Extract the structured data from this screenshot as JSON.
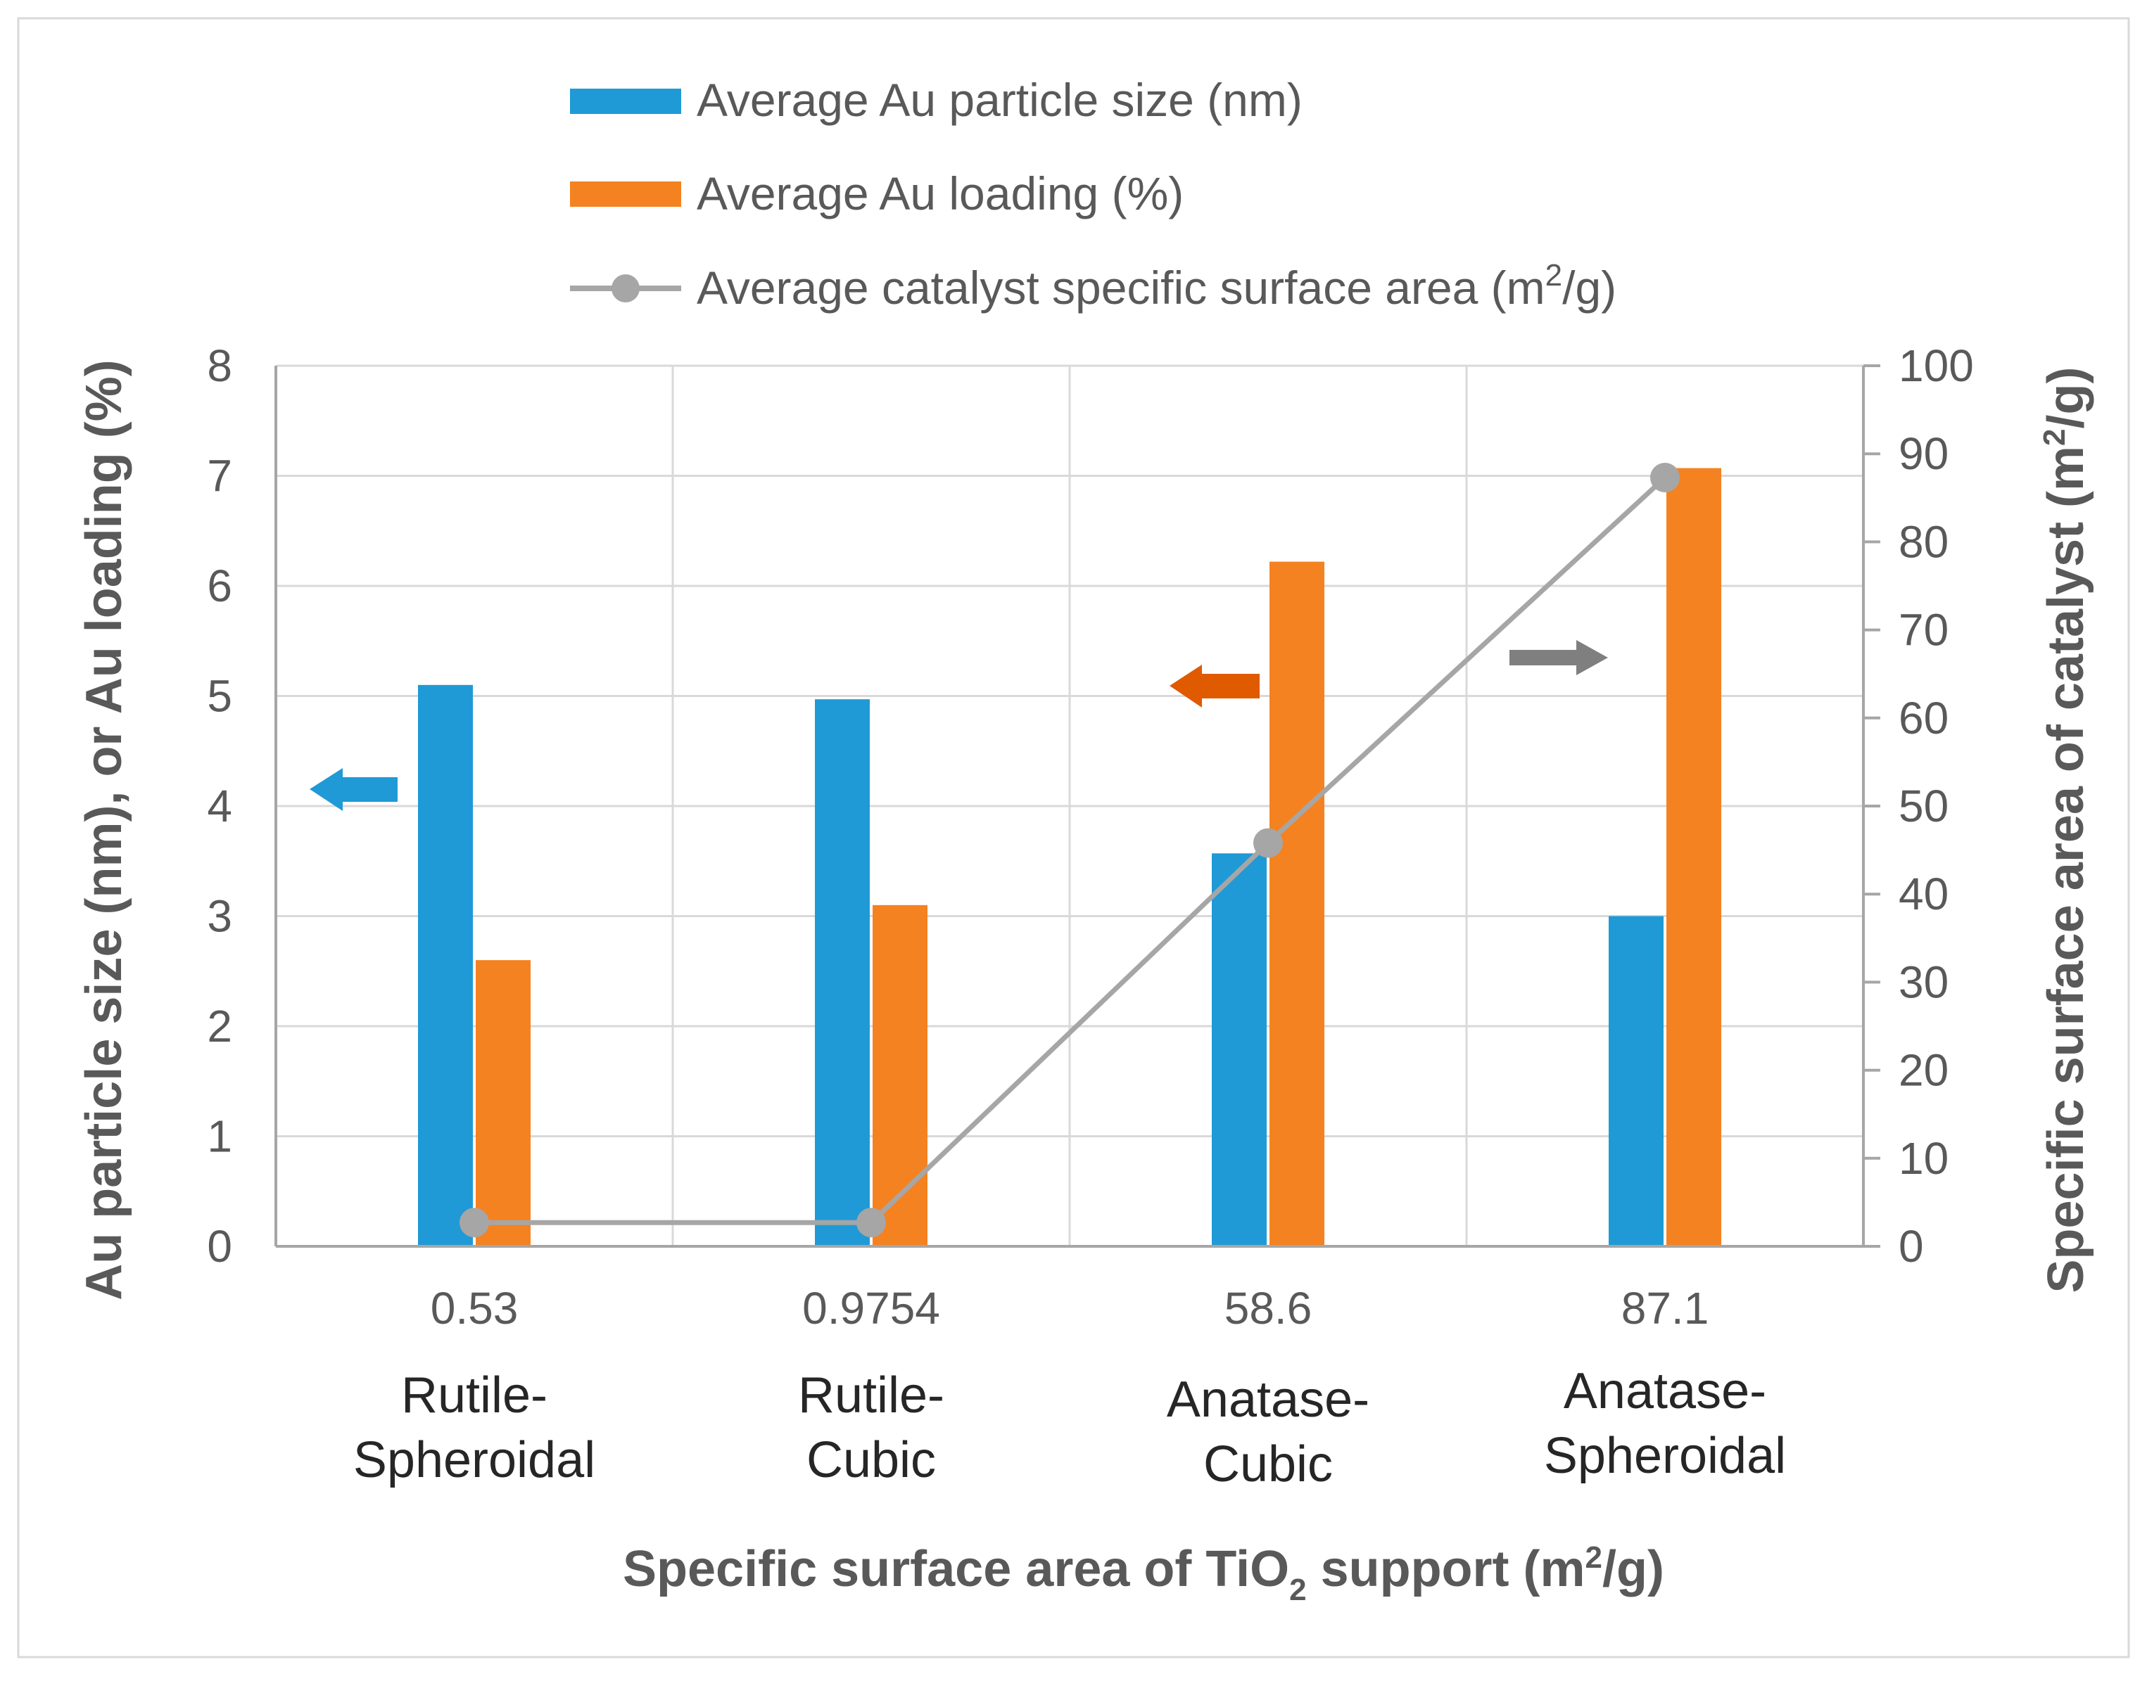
{
  "chart_data": {
    "type": "bar",
    "categories": [
      "0.53",
      "0.9754",
      "58.6",
      "87.1"
    ],
    "category_names": [
      [
        "Rutile-",
        "Spheroidal"
      ],
      [
        "Rutile-",
        "Cubic"
      ],
      [
        "Anatase-",
        "Cubic"
      ],
      [
        "Anatase-",
        "Spheroidal"
      ]
    ],
    "series": [
      {
        "name": "Average Au particle size (nm)",
        "type": "bar",
        "axis": "left",
        "color": "#1f9ad6",
        "values": [
          5.1,
          4.97,
          3.57,
          3.0
        ]
      },
      {
        "name": "Average Au loading (%)",
        "type": "bar",
        "axis": "left",
        "color": "#f58220",
        "values": [
          2.6,
          3.1,
          6.22,
          7.07
        ]
      },
      {
        "name": "Average catalyst specific surface area (m2/g)",
        "type": "line",
        "axis": "right",
        "color": "#a6a6a6",
        "values": [
          2.7,
          2.7,
          45.8,
          87.3
        ]
      }
    ],
    "legend": [
      {
        "text": "Average Au particle size (nm)"
      },
      {
        "text": "Average Au loading (%)"
      },
      {
        "text": "Average catalyst specific surface area (m",
        "sup": "2",
        "after": "/g)"
      }
    ],
    "y_left": {
      "label": "Au particle size (nm), or Au loading (%)",
      "ylim": [
        0,
        8
      ],
      "ticks": [
        0,
        1,
        2,
        3,
        4,
        5,
        6,
        7,
        8
      ]
    },
    "y_right": {
      "label": "Specific surface area of catalyst (m",
      "sup": "2",
      "after": "/g)",
      "ylim": [
        0,
        100
      ],
      "ticks": [
        0,
        10,
        20,
        30,
        40,
        50,
        60,
        70,
        80,
        90,
        100
      ]
    },
    "x_axis": {
      "label_pre": "Specific surface area of TiO",
      "sub": "2",
      "label_mid": " support (m",
      "sup": "2",
      "label_post": "/g)"
    },
    "grid": true,
    "legend_position": "top",
    "annotations": [
      {
        "name": "blue-left-arrow",
        "direction": "left",
        "color": "#1f9ad6"
      },
      {
        "name": "orange-left-arrow",
        "direction": "left",
        "color": "#e05a00"
      },
      {
        "name": "gray-right-arrow",
        "direction": "right",
        "color": "#7f7f7f"
      }
    ]
  }
}
